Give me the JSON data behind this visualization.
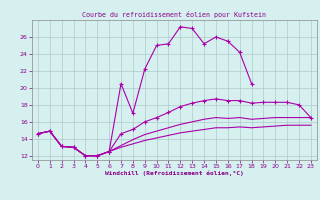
{
  "title": "Courbe du refroidissement éolien pour Kufstein",
  "xlabel": "Windchill (Refroidissement éolien,°C)",
  "background_color": "#d6f0f0",
  "grid_color": "#b0c8c8",
  "line_color": "#aa00aa",
  "x_values": [
    0,
    1,
    2,
    3,
    4,
    5,
    6,
    7,
    8,
    9,
    10,
    11,
    12,
    13,
    14,
    15,
    16,
    17,
    18,
    19,
    20,
    21,
    22,
    23
  ],
  "series_main": [
    14.6,
    14.9,
    13.1,
    13.0,
    12.0,
    12.0,
    12.5,
    20.5,
    17.0,
    22.2,
    25.0,
    25.2,
    27.2,
    27.0,
    25.2,
    26.0,
    25.5,
    24.2,
    20.5,
    null,
    null,
    null,
    null,
    null
  ],
  "series_upper": [
    14.6,
    14.9,
    13.1,
    13.0,
    12.0,
    12.0,
    12.5,
    14.6,
    15.1,
    16.0,
    16.5,
    17.1,
    17.8,
    18.2,
    18.5,
    18.7,
    18.5,
    18.5,
    18.2,
    18.3,
    18.3,
    18.3,
    18.0,
    16.5
  ],
  "series_mid": [
    14.6,
    14.9,
    13.1,
    13.0,
    12.0,
    12.0,
    12.5,
    13.2,
    13.9,
    14.5,
    14.9,
    15.3,
    15.7,
    16.0,
    16.3,
    16.5,
    16.4,
    16.5,
    16.3,
    16.4,
    16.5,
    16.5,
    16.5,
    16.5
  ],
  "series_lower": [
    14.6,
    14.9,
    13.1,
    13.0,
    12.0,
    12.0,
    12.5,
    13.0,
    13.4,
    13.8,
    14.1,
    14.4,
    14.7,
    14.9,
    15.1,
    15.3,
    15.3,
    15.4,
    15.3,
    15.4,
    15.5,
    15.6,
    15.6,
    15.6
  ],
  "ylim": [
    11.5,
    28.0
  ],
  "yticks": [
    12,
    14,
    16,
    18,
    20,
    22,
    24,
    26
  ],
  "xlim": [
    -0.5,
    23.5
  ]
}
